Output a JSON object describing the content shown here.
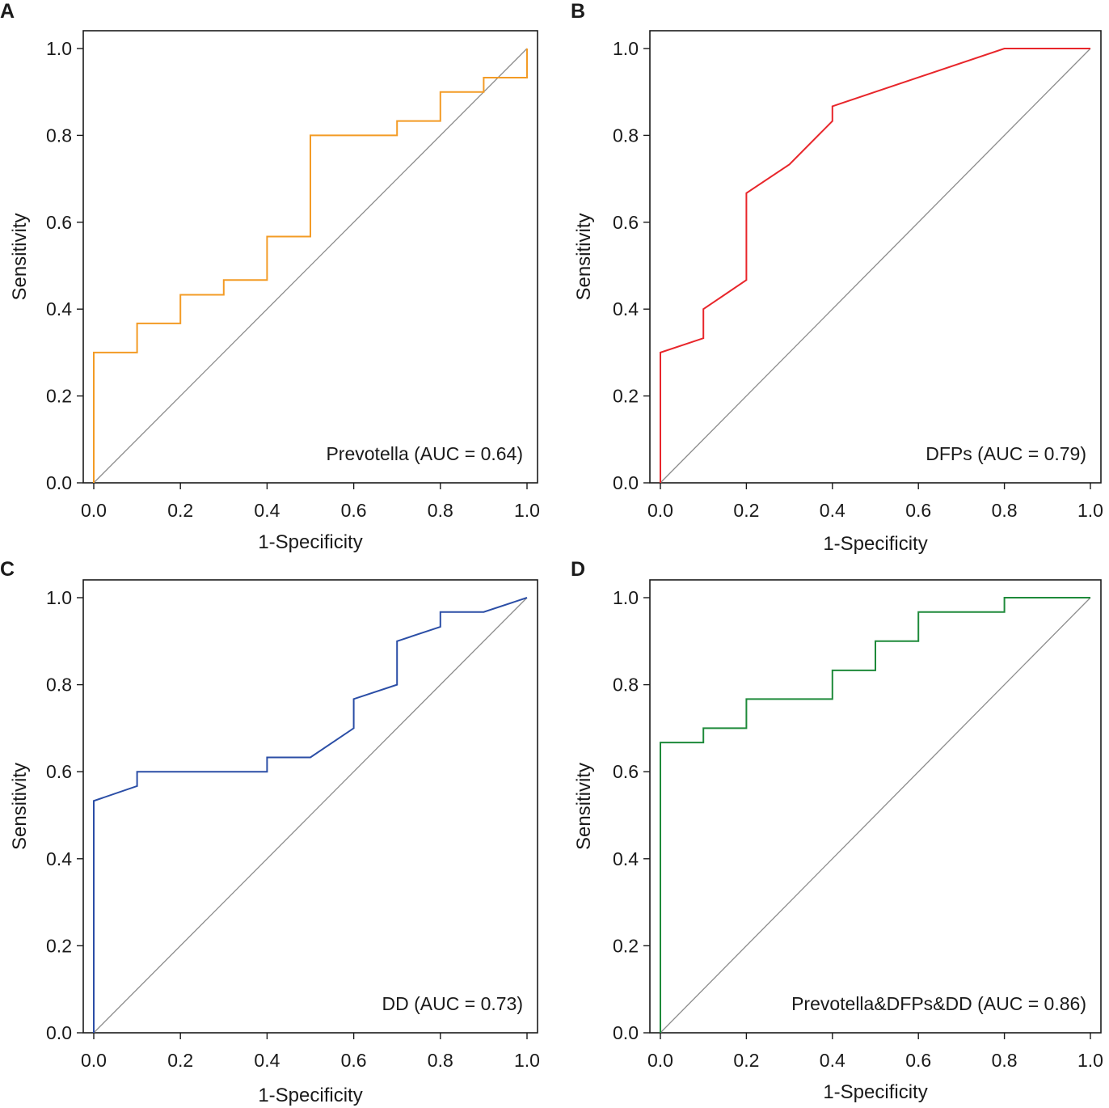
{
  "chart_data": [
    {
      "type": "line",
      "panel_label": "A",
      "xlabel": "1-Specificity",
      "ylabel": "Sensitivity",
      "xlim": [
        0,
        1
      ],
      "ylim": [
        0,
        1
      ],
      "xticks": [
        "0.0",
        "0.2",
        "0.4",
        "0.6",
        "0.8",
        "1.0"
      ],
      "yticks": [
        "0.0",
        "0.2",
        "0.4",
        "0.6",
        "0.8",
        "1.0"
      ],
      "legend": "Prevotella (AUC = 0.64)",
      "color": "#f39b25",
      "reference_line": true,
      "series": [
        {
          "name": "Prevotella",
          "x": [
            0,
            0,
            0.1,
            0.1,
            0.2,
            0.2,
            0.3,
            0.3,
            0.4,
            0.4,
            0.5,
            0.5,
            0.7,
            0.7,
            0.8,
            0.8,
            0.9,
            0.9,
            1.0,
            1.0
          ],
          "y": [
            0,
            0.3,
            0.3,
            0.367,
            0.367,
            0.433,
            0.433,
            0.467,
            0.467,
            0.567,
            0.567,
            0.8,
            0.8,
            0.833,
            0.833,
            0.9,
            0.9,
            0.933,
            0.933,
            1.0
          ]
        }
      ]
    },
    {
      "type": "line",
      "panel_label": "B",
      "xlabel": "1-Specificity",
      "ylabel": "Sensitivity",
      "xlim": [
        0,
        1
      ],
      "ylim": [
        0,
        1
      ],
      "xticks": [
        "0.0",
        "0.2",
        "0.4",
        "0.6",
        "0.8",
        "1.0"
      ],
      "yticks": [
        "0.0",
        "0.2",
        "0.4",
        "0.6",
        "0.8",
        "1.0"
      ],
      "legend": "DFPs (AUC = 0.79)",
      "color": "#e8262b",
      "reference_line": true,
      "series": [
        {
          "name": "DFPs",
          "x": [
            0,
            0,
            0.1,
            0.1,
            0.2,
            0.2,
            0.3,
            0.4,
            0.4,
            0.8,
            1.0
          ],
          "y": [
            0,
            0.3,
            0.333,
            0.4,
            0.467,
            0.667,
            0.733,
            0.833,
            0.867,
            1.0,
            1.0
          ]
        }
      ]
    },
    {
      "type": "line",
      "panel_label": "C",
      "xlabel": "1-Specificity",
      "ylabel": "Sensitivity",
      "xlim": [
        0,
        1
      ],
      "ylim": [
        0,
        1
      ],
      "xticks": [
        "0.0",
        "0.2",
        "0.4",
        "0.6",
        "0.8",
        "1.0"
      ],
      "yticks": [
        "0.0",
        "0.2",
        "0.4",
        "0.6",
        "0.8",
        "1.0"
      ],
      "legend": "DD (AUC = 0.73)",
      "color": "#2b4ea6",
      "reference_line": true,
      "series": [
        {
          "name": "DD",
          "x": [
            0,
            0,
            0.1,
            0.1,
            0.4,
            0.4,
            0.5,
            0.6,
            0.6,
            0.7,
            0.7,
            0.8,
            0.8,
            0.9,
            1.0
          ],
          "y": [
            0,
            0.533,
            0.567,
            0.6,
            0.6,
            0.633,
            0.633,
            0.7,
            0.767,
            0.8,
            0.9,
            0.933,
            0.967,
            0.967,
            1.0
          ]
        }
      ]
    },
    {
      "type": "line",
      "panel_label": "D",
      "xlabel": "1-Specificity",
      "ylabel": "Sensitivity",
      "xlim": [
        0,
        1
      ],
      "ylim": [
        0,
        1
      ],
      "xticks": [
        "0.0",
        "0.2",
        "0.4",
        "0.6",
        "0.8",
        "1.0"
      ],
      "yticks": [
        "0.0",
        "0.2",
        "0.4",
        "0.6",
        "0.8",
        "1.0"
      ],
      "legend": "Prevotella&DFPs&DD (AUC = 0.86)",
      "color": "#1e8a3a",
      "reference_line": true,
      "series": [
        {
          "name": "Prevotella&DFPs&DD",
          "x": [
            0,
            0,
            0.1,
            0.1,
            0.2,
            0.2,
            0.4,
            0.4,
            0.5,
            0.5,
            0.6,
            0.6,
            0.8,
            0.8,
            1.0
          ],
          "y": [
            0,
            0.667,
            0.667,
            0.7,
            0.7,
            0.767,
            0.767,
            0.833,
            0.833,
            0.9,
            0.9,
            0.967,
            0.967,
            1.0,
            1.0
          ]
        }
      ]
    }
  ]
}
